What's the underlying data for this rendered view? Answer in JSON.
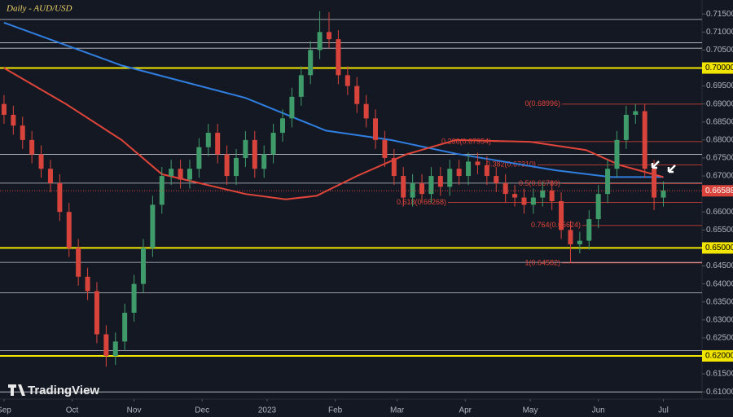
{
  "chart_data": {
    "type": "candlestick",
    "title": "Daily - AUD/USD",
    "watermark": "TradingView",
    "colors": {
      "up": "#3f9c6a",
      "down": "#d8443c",
      "ma_fast": "#e0453a",
      "ma_slow": "#2f7ee0",
      "level": "#f2e600",
      "fib": "#e0453a"
    },
    "xlim": [
      -1.3,
      225.5
    ],
    "xticks": [
      {
        "value": 0,
        "label": "Sep"
      },
      {
        "value": 22,
        "label": "Oct"
      },
      {
        "value": 42,
        "label": "Nov"
      },
      {
        "value": 64,
        "label": "Dec"
      },
      {
        "value": 85,
        "label": "2023"
      },
      {
        "value": 107,
        "label": "Feb"
      },
      {
        "value": 127,
        "label": "Mar"
      },
      {
        "value": 149,
        "label": "Apr"
      },
      {
        "value": 170,
        "label": "May"
      },
      {
        "value": 192,
        "label": "Jun"
      },
      {
        "value": 213,
        "label": "Jul"
      }
    ],
    "ylim": [
      0.608,
      0.7189
    ],
    "yticks": [
      {
        "value": 0.715,
        "label": "0.71500"
      },
      {
        "value": 0.71,
        "label": "0.71000"
      },
      {
        "value": 0.705,
        "label": "0.70500"
      },
      {
        "value": 0.695,
        "label": "0.69500"
      },
      {
        "value": 0.69,
        "label": "0.69000"
      },
      {
        "value": 0.685,
        "label": "0.68500"
      },
      {
        "value": 0.68,
        "label": "0.68000"
      },
      {
        "value": 0.675,
        "label": "0.67500"
      },
      {
        "value": 0.67,
        "label": "0.67000"
      },
      {
        "value": 0.66,
        "label": "0.66000"
      },
      {
        "value": 0.655,
        "label": "0.65500"
      },
      {
        "value": 0.645,
        "label": "0.64500"
      },
      {
        "value": 0.64,
        "label": "0.64000"
      },
      {
        "value": 0.635,
        "label": "0.63500"
      },
      {
        "value": 0.63,
        "label": "0.63000"
      },
      {
        "value": 0.625,
        "label": "0.62500"
      },
      {
        "value": 0.615,
        "label": "0.61500"
      },
      {
        "value": 0.61,
        "label": "0.61000"
      }
    ],
    "key_levels": [
      {
        "value": 0.7,
        "label": "0.70000"
      },
      {
        "value": 0.65,
        "label": "0.65000"
      },
      {
        "value": 0.62,
        "label": "0.62000"
      }
    ],
    "minor_levels": [
      0.7135,
      0.707,
      0.7055,
      0.676,
      0.668,
      0.646,
      0.6375,
      0.6215,
      0.61
    ],
    "current_price": {
      "value": 0.66588,
      "label": "0.66588"
    },
    "fib_levels": [
      {
        "value": 0.68996,
        "label": "0(0.68996)"
      },
      {
        "value": 0.67954,
        "label": "0.236(0.67954)"
      },
      {
        "value": 0.6731,
        "label": "0.382(0.67310)"
      },
      {
        "value": 0.66789,
        "label": "0.5(0.66789)"
      },
      {
        "value": 0.66268,
        "label": "0.618(0.66268)"
      },
      {
        "value": 0.65624,
        "label": "0.764(0.65624)"
      },
      {
        "value": 0.64582,
        "label": "1(0.64582)"
      }
    ],
    "candles": {
      "x": [
        0,
        3,
        6,
        9,
        12,
        15,
        18,
        21,
        24,
        27,
        30,
        33,
        36,
        39,
        42,
        45,
        48,
        51,
        54,
        57,
        60,
        63,
        66,
        69,
        72,
        75,
        78,
        81,
        84,
        87,
        90,
        93,
        96,
        99,
        102,
        105,
        108,
        111,
        114,
        117,
        120,
        123,
        126,
        129,
        132,
        135,
        138,
        141,
        144,
        147,
        150,
        153,
        156,
        159,
        162,
        165,
        168,
        171,
        174,
        177,
        180,
        183,
        186,
        189,
        192,
        195,
        198,
        201,
        204,
        207,
        210,
        213
      ],
      "open": [
        0.69,
        0.687,
        0.684,
        0.68,
        0.676,
        0.672,
        0.668,
        0.66,
        0.65,
        0.642,
        0.638,
        0.626,
        0.62,
        0.624,
        0.632,
        0.64,
        0.65,
        0.662,
        0.67,
        0.672,
        0.669,
        0.672,
        0.678,
        0.682,
        0.676,
        0.67,
        0.675,
        0.68,
        0.672,
        0.676,
        0.682,
        0.686,
        0.692,
        0.698,
        0.705,
        0.71,
        0.708,
        0.698,
        0.695,
        0.69,
        0.686,
        0.68,
        0.675,
        0.67,
        0.664,
        0.668,
        0.665,
        0.67,
        0.667,
        0.672,
        0.67,
        0.674,
        0.673,
        0.67,
        0.668,
        0.665,
        0.664,
        0.662,
        0.664,
        0.666,
        0.663,
        0.655,
        0.651,
        0.652,
        0.658,
        0.665,
        0.672,
        0.68,
        0.687,
        0.688,
        0.672,
        0.664
      ],
      "high": [
        0.6925,
        0.6895,
        0.6865,
        0.6825,
        0.6785,
        0.6745,
        0.6705,
        0.6625,
        0.6525,
        0.6445,
        0.6405,
        0.6285,
        0.6265,
        0.6345,
        0.6425,
        0.6525,
        0.6645,
        0.6725,
        0.6745,
        0.6745,
        0.6745,
        0.6805,
        0.6845,
        0.6845,
        0.6785,
        0.6775,
        0.6825,
        0.6825,
        0.6785,
        0.6845,
        0.6885,
        0.6945,
        0.7005,
        0.7075,
        0.7158,
        0.7155,
        0.7105,
        0.7005,
        0.6975,
        0.6925,
        0.6885,
        0.6825,
        0.6775,
        0.6725,
        0.6705,
        0.6705,
        0.6725,
        0.6725,
        0.6745,
        0.6745,
        0.6765,
        0.6765,
        0.6755,
        0.6725,
        0.6705,
        0.6675,
        0.6665,
        0.6665,
        0.6685,
        0.6685,
        0.6655,
        0.6575,
        0.6545,
        0.6605,
        0.6675,
        0.6745,
        0.6825,
        0.6895,
        0.69,
        0.69,
        0.6745,
        0.6685
      ],
      "low": [
        0.6845,
        0.6815,
        0.6775,
        0.6735,
        0.6695,
        0.6655,
        0.6575,
        0.6475,
        0.6395,
        0.6355,
        0.6235,
        0.617,
        0.6175,
        0.6215,
        0.6295,
        0.6375,
        0.6475,
        0.6595,
        0.6675,
        0.6665,
        0.6665,
        0.6695,
        0.6755,
        0.6735,
        0.6675,
        0.6675,
        0.6725,
        0.6695,
        0.6695,
        0.6735,
        0.6795,
        0.6835,
        0.6895,
        0.6955,
        0.7025,
        0.7055,
        0.6955,
        0.6925,
        0.6875,
        0.6835,
        0.6775,
        0.6725,
        0.6675,
        0.6615,
        0.6615,
        0.6625,
        0.6625,
        0.6645,
        0.6645,
        0.6675,
        0.6675,
        0.6705,
        0.6675,
        0.6655,
        0.6625,
        0.6615,
        0.6595,
        0.6595,
        0.6615,
        0.6605,
        0.6525,
        0.6458,
        0.6485,
        0.6495,
        0.6555,
        0.6625,
        0.6695,
        0.6775,
        0.6845,
        0.6695,
        0.6605,
        0.6615
      ],
      "close": [
        0.687,
        0.684,
        0.68,
        0.676,
        0.672,
        0.668,
        0.66,
        0.65,
        0.642,
        0.638,
        0.626,
        0.62,
        0.624,
        0.632,
        0.64,
        0.65,
        0.662,
        0.67,
        0.672,
        0.669,
        0.672,
        0.678,
        0.682,
        0.676,
        0.67,
        0.675,
        0.68,
        0.672,
        0.676,
        0.682,
        0.686,
        0.692,
        0.698,
        0.705,
        0.71,
        0.708,
        0.698,
        0.695,
        0.69,
        0.686,
        0.68,
        0.675,
        0.67,
        0.664,
        0.668,
        0.665,
        0.67,
        0.667,
        0.672,
        0.67,
        0.674,
        0.673,
        0.67,
        0.668,
        0.665,
        0.664,
        0.662,
        0.664,
        0.666,
        0.663,
        0.655,
        0.651,
        0.652,
        0.658,
        0.665,
        0.672,
        0.68,
        0.687,
        0.688,
        0.672,
        0.664,
        0.666
      ]
    },
    "moving_averages": [
      {
        "key": "ma_slow",
        "x": [
          0,
          38,
          78,
          104,
          125,
          146,
          178,
          196,
          213
        ],
        "values": [
          0.7126,
          0.7007,
          0.6917,
          0.6826,
          0.68,
          0.6762,
          0.6716,
          0.6697,
          0.6697
        ]
      },
      {
        "key": "ma_fast",
        "x": [
          0,
          20,
          38,
          51,
          78,
          91,
          101,
          114,
          130,
          146,
          170,
          188,
          199,
          213
        ],
        "values": [
          0.7,
          0.69,
          0.68,
          0.6705,
          0.665,
          0.6635,
          0.6645,
          0.67,
          0.676,
          0.68,
          0.6795,
          0.6772,
          0.673,
          0.6697
        ]
      }
    ]
  }
}
